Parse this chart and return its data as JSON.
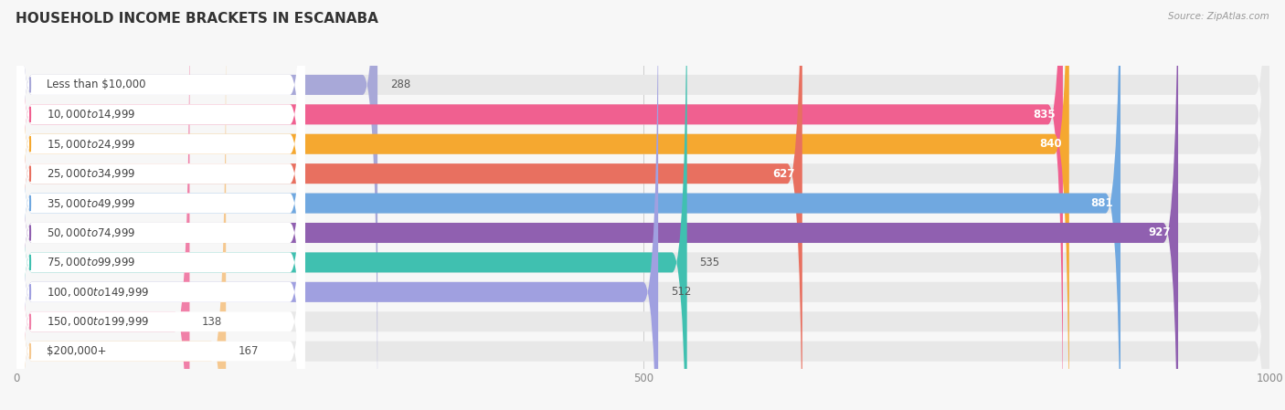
{
  "title": "HOUSEHOLD INCOME BRACKETS IN ESCANABA",
  "source": "Source: ZipAtlas.com",
  "categories": [
    "Less than $10,000",
    "$10,000 to $14,999",
    "$15,000 to $24,999",
    "$25,000 to $34,999",
    "$35,000 to $49,999",
    "$50,000 to $74,999",
    "$75,000 to $99,999",
    "$100,000 to $149,999",
    "$150,000 to $199,999",
    "$200,000+"
  ],
  "values": [
    288,
    835,
    840,
    627,
    881,
    927,
    535,
    512,
    138,
    167
  ],
  "bar_colors": [
    "#a8a8d8",
    "#f06090",
    "#f5a830",
    "#e87060",
    "#70a8e0",
    "#9060b0",
    "#40c0b0",
    "#a0a0e0",
    "#f080a8",
    "#f5c890"
  ],
  "label_colors_inside": [
    false,
    true,
    true,
    true,
    true,
    true,
    false,
    false,
    false,
    false
  ],
  "xlim": [
    0,
    1000
  ],
  "xticks": [
    0,
    500,
    1000
  ],
  "background_color": "#f7f7f7",
  "bar_bg_color": "#e8e8e8",
  "title_fontsize": 11,
  "label_fontsize": 8.5,
  "value_fontsize": 8.5
}
